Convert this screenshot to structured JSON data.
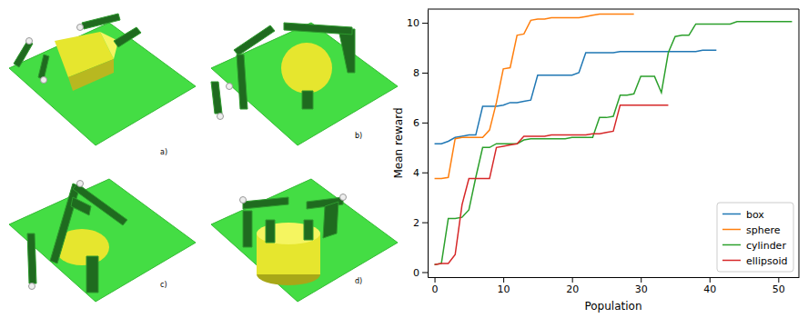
{
  "panel_labels": [
    "a)",
    "b)",
    "c)",
    "d)"
  ],
  "chart_data": {
    "type": "line",
    "x_label": "Population",
    "y_label": "Mean reward",
    "xlim": [
      -1,
      53
    ],
    "ylim": [
      -0.2,
      10.55
    ],
    "xticks": [
      0,
      10,
      20,
      30,
      40,
      50
    ],
    "yticks": [
      0,
      2,
      4,
      6,
      8,
      10
    ],
    "grid": false,
    "legend": "lower right",
    "series": [
      {
        "name": "box",
        "color": "#1f77b4",
        "x": [
          0,
          1,
          2,
          3,
          4,
          5,
          6,
          7,
          8,
          9,
          10,
          11,
          12,
          13,
          14,
          15,
          16,
          17,
          18,
          19,
          20,
          21,
          22,
          23,
          24,
          25,
          26,
          27,
          28,
          29,
          30,
          31,
          32,
          33,
          34,
          35,
          36,
          37,
          38,
          39,
          40,
          41
        ],
        "values": [
          5.15,
          5.15,
          5.25,
          5.4,
          5.45,
          5.5,
          5.5,
          6.65,
          6.65,
          6.65,
          6.7,
          6.8,
          6.8,
          6.85,
          6.9,
          7.9,
          7.9,
          7.9,
          7.9,
          7.9,
          7.9,
          8.0,
          8.8,
          8.8,
          8.8,
          8.8,
          8.8,
          8.85,
          8.85,
          8.85,
          8.85,
          8.85,
          8.85,
          8.85,
          8.85,
          8.85,
          8.85,
          8.85,
          8.85,
          8.9,
          8.9,
          8.9
        ]
      },
      {
        "name": "sphere",
        "color": "#ff7f0e",
        "x": [
          0,
          1,
          2,
          3,
          4,
          5,
          6,
          7,
          8,
          9,
          10,
          11,
          12,
          13,
          14,
          15,
          16,
          17,
          18,
          19,
          20,
          21,
          22,
          23,
          24,
          25,
          26,
          27,
          28,
          29
        ],
        "values": [
          3.75,
          3.75,
          3.8,
          5.35,
          5.4,
          5.4,
          5.4,
          5.4,
          5.7,
          6.8,
          8.15,
          8.2,
          9.5,
          9.55,
          10.1,
          10.15,
          10.15,
          10.2,
          10.2,
          10.2,
          10.2,
          10.2,
          10.25,
          10.3,
          10.35,
          10.35,
          10.35,
          10.35,
          10.35,
          10.35
        ]
      },
      {
        "name": "cylinder",
        "color": "#2ca02c",
        "x": [
          0,
          1,
          2,
          3,
          4,
          5,
          6,
          7,
          8,
          9,
          10,
          11,
          12,
          13,
          14,
          15,
          16,
          17,
          18,
          19,
          20,
          21,
          22,
          23,
          24,
          25,
          26,
          27,
          28,
          29,
          30,
          31,
          32,
          33,
          34,
          35,
          36,
          37,
          38,
          39,
          40,
          41,
          42,
          43,
          44,
          45,
          46,
          47,
          48,
          49,
          50,
          51,
          52
        ],
        "values": [
          0.3,
          0.35,
          2.15,
          2.15,
          2.2,
          2.5,
          3.8,
          5.0,
          5.0,
          5.15,
          5.15,
          5.15,
          5.15,
          5.3,
          5.35,
          5.35,
          5.35,
          5.35,
          5.35,
          5.35,
          5.4,
          5.4,
          5.4,
          5.4,
          6.2,
          6.2,
          6.25,
          7.1,
          7.1,
          7.15,
          7.85,
          7.85,
          7.85,
          7.2,
          8.8,
          9.45,
          9.5,
          9.5,
          9.95,
          9.95,
          9.95,
          9.95,
          9.95,
          9.95,
          10.05,
          10.05,
          10.05,
          10.05,
          10.05,
          10.05,
          10.05,
          10.05,
          10.05
        ]
      },
      {
        "name": "ellipsoid",
        "color": "#d62728",
        "x": [
          0,
          1,
          2,
          3,
          4,
          5,
          6,
          7,
          8,
          9,
          10,
          11,
          12,
          13,
          14,
          15,
          16,
          17,
          18,
          19,
          20,
          21,
          22,
          23,
          24,
          25,
          26,
          27,
          28,
          29,
          30,
          31,
          32,
          33,
          34
        ],
        "values": [
          0.3,
          0.35,
          0.35,
          0.7,
          2.7,
          3.75,
          3.75,
          3.75,
          3.75,
          5.0,
          5.05,
          5.1,
          5.15,
          5.45,
          5.45,
          5.45,
          5.45,
          5.5,
          5.5,
          5.5,
          5.5,
          5.5,
          5.5,
          5.55,
          5.55,
          5.6,
          5.65,
          6.7,
          6.7,
          6.7,
          6.7,
          6.7,
          6.7,
          6.7,
          6.7
        ]
      }
    ]
  }
}
